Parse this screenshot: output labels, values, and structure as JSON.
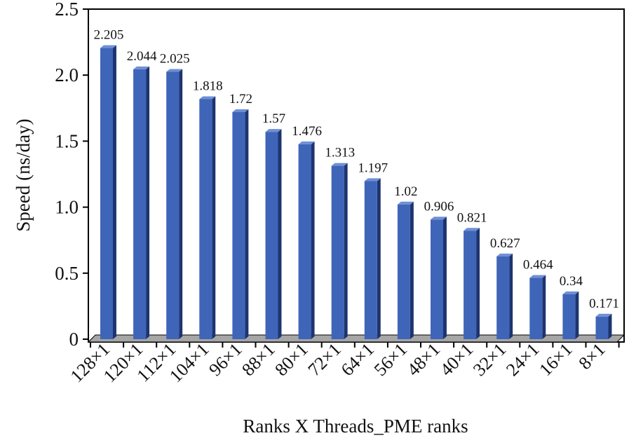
{
  "chart_data": {
    "type": "bar",
    "title": "",
    "xlabel": "Ranks X Threads_PME ranks",
    "ylabel": "Speed (ns/day)",
    "categories": [
      "128×1",
      "120×1",
      "112×1",
      "104×1",
      "96×1",
      "88×1",
      "80×1",
      "72×1",
      "64×1",
      "56×1",
      "48×1",
      "40×1",
      "32×1",
      "24×1",
      "16×1",
      "8×1"
    ],
    "values": [
      2.205,
      2.044,
      2.025,
      1.818,
      1.72,
      1.57,
      1.476,
      1.313,
      1.197,
      1.02,
      0.906,
      0.821,
      0.627,
      0.464,
      0.34,
      0.171
    ],
    "value_labels": [
      "2.205",
      "2.044",
      "2.025",
      "1.818",
      "1.72",
      "1.57",
      "1.476",
      "1.313",
      "1.197",
      "1.02",
      "0.906",
      "0.821",
      "0.627",
      "0.464",
      "0.34",
      "0.171"
    ],
    "yticks": [
      "0",
      "0.5",
      "1.0",
      "1.5",
      "2.0",
      "2.5"
    ],
    "ytick_values": [
      0,
      0.5,
      1.0,
      1.5,
      2.0,
      2.5
    ],
    "ylim": [
      0,
      2.5
    ],
    "grid": false,
    "legend": "none",
    "style": "3d",
    "colors": {
      "bar_front": "#3f65b8",
      "bar_side": "#1d3470",
      "bar_top": "#6f8fd6",
      "floor": "#a6a6a6",
      "frame": "#000000"
    }
  }
}
